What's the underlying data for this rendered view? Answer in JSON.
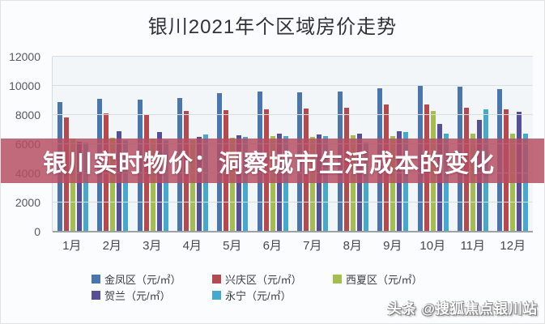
{
  "page": {
    "title": "银川2021年个区域房价走势",
    "banner_text": "银川实时物价：洞察城市生活成本的变化",
    "watermark": "头条 @搜狐焦点银川站"
  },
  "colors": {
    "banner_bg": "rgba(181,77,99,0.84)",
    "plot_bg": "#f2f6f8",
    "gridline": "#d9dee1"
  },
  "chart_data": {
    "type": "bar",
    "title": "银川2021年个区域房价走势",
    "categories": [
      "1月",
      "2月",
      "3月",
      "4月",
      "5月",
      "6月",
      "7月",
      "8月",
      "9月",
      "10月",
      "11月",
      "12月"
    ],
    "series": [
      {
        "name": "金凤区（元/㎡）",
        "color": "#4a76ad",
        "values": [
          8900,
          9100,
          9050,
          9150,
          9500,
          9600,
          9550,
          9600,
          9850,
          10000,
          9950,
          9800
        ]
      },
      {
        "name": "兴庆区（元/㎡）",
        "color": "#b5494d",
        "values": [
          7850,
          8100,
          8050,
          8300,
          8350,
          8400,
          8450,
          8500,
          8700,
          8750,
          8500,
          8400
        ]
      },
      {
        "name": "西夏区（元/㎡）",
        "color": "#a3bd51",
        "values": [
          6400,
          6450,
          6400,
          6300,
          6450,
          6550,
          6500,
          6600,
          6550,
          8300,
          6750,
          6700
        ]
      },
      {
        "name": "贺兰（元/㎡）",
        "color": "#574f96",
        "values": [
          6150,
          6900,
          6850,
          6500,
          6600,
          6700,
          6650,
          6750,
          6900,
          7400,
          7650,
          8200
        ]
      },
      {
        "name": "永宁（元/㎡）",
        "color": "#45a9cd",
        "values": [
          6100,
          6300,
          6300,
          6650,
          6500,
          6550,
          6550,
          6100,
          6850,
          6700,
          8400,
          6700
        ]
      }
    ],
    "xlabel": "",
    "ylabel": "",
    "ylim": [
      0,
      12000
    ],
    "yticks": [
      0,
      2000,
      4000,
      6000,
      8000,
      10000,
      12000
    ],
    "grid": true,
    "legend_position": "bottom",
    "legend_rows": [
      [
        0,
        1,
        2
      ],
      [
        3,
        4
      ]
    ]
  }
}
